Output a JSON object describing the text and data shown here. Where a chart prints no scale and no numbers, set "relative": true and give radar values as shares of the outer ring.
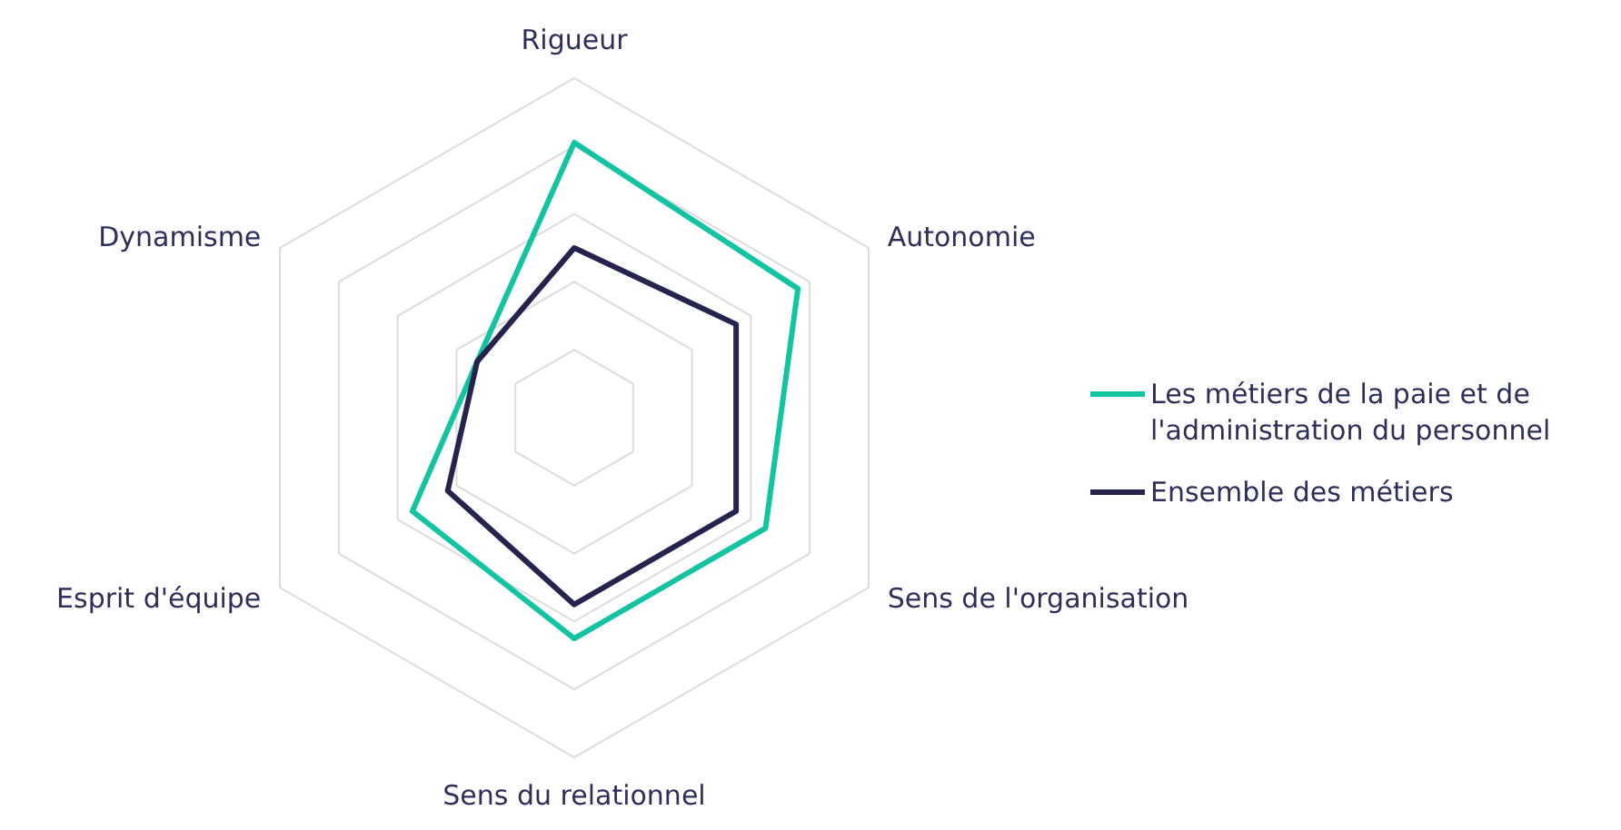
{
  "chart_data": {
    "type": "radar",
    "relative": true,
    "grid": true,
    "legend": "right",
    "categories": [
      "Rigueur",
      "Autonomie",
      "Sens de l'organisation",
      "Sens du relationnel",
      "Esprit d'équipe",
      "Dynamisme"
    ],
    "series": [
      {
        "name": "Les métiers de la paie et de l'administration du personnel",
        "color": "#13c4a3",
        "values": [
          0.81,
          0.76,
          0.65,
          0.65,
          0.55,
          0.33
        ]
      },
      {
        "name": "Ensemble des métiers",
        "color": "#24244e",
        "values": [
          0.5,
          0.55,
          0.55,
          0.55,
          0.43,
          0.33
        ]
      }
    ]
  }
}
